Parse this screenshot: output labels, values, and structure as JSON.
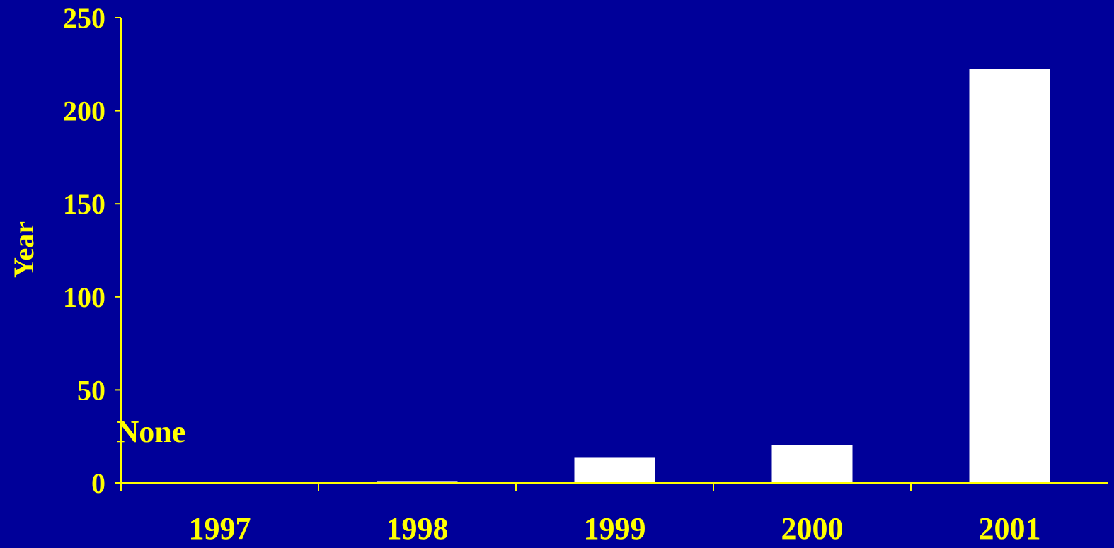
{
  "chart_data": {
    "type": "bar",
    "categories": [
      "1997",
      "1998",
      "1999",
      "2000",
      "2001"
    ],
    "values": [
      0,
      1,
      13.5,
      20.5,
      222.5
    ],
    "ylabel": "Year",
    "xlabel": "",
    "ylim": [
      0,
      250
    ],
    "yticks": [
      "0",
      "50",
      "100",
      "150",
      "200",
      "250"
    ],
    "annotations": [
      {
        "text": "None",
        "category": "1997"
      }
    ],
    "grid": false,
    "colors": {
      "background": "#000099",
      "axis": "#FFFF00",
      "text": "#FFFF00",
      "bar": "#FFFFFF"
    }
  }
}
